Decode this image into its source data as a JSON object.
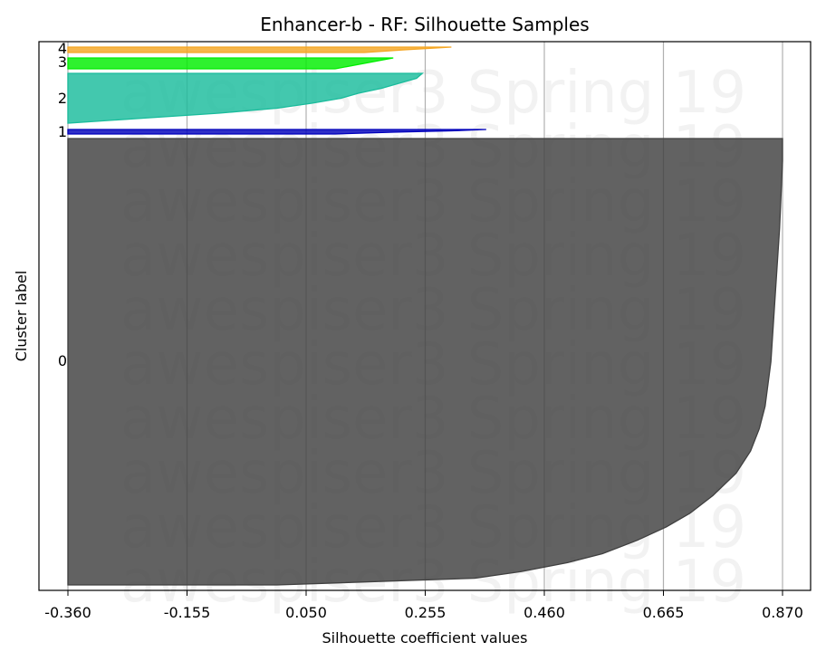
{
  "chart_data": {
    "type": "area",
    "title": "Enhancer-b - RF: Silhouette Samples",
    "xlabel": "Silhouette coefficient values",
    "ylabel": "Cluster label",
    "xlim": [
      -0.36,
      0.87
    ],
    "x_ticks": [
      "-0.360",
      "-0.155",
      "0.050",
      "0.255",
      "0.460",
      "0.665",
      "0.870"
    ],
    "x_tick_values": [
      -0.36,
      -0.155,
      0.05,
      0.255,
      0.46,
      0.665,
      0.87
    ],
    "grid": "vertical",
    "watermark": "awespiser3 Spring 19",
    "clusters": [
      {
        "label": "0",
        "color": "#404040",
        "profile": [
          [
            0.0,
            0.87
          ],
          [
            0.05,
            0.87
          ],
          [
            0.2,
            0.865
          ],
          [
            0.3,
            0.86
          ],
          [
            0.4,
            0.855
          ],
          [
            0.5,
            0.85
          ],
          [
            0.55,
            0.845
          ],
          [
            0.6,
            0.84
          ],
          [
            0.65,
            0.83
          ],
          [
            0.7,
            0.815
          ],
          [
            0.75,
            0.79
          ],
          [
            0.8,
            0.75
          ],
          [
            0.84,
            0.71
          ],
          [
            0.87,
            0.67
          ],
          [
            0.9,
            0.62
          ],
          [
            0.93,
            0.56
          ],
          [
            0.95,
            0.5
          ],
          [
            0.97,
            0.42
          ],
          [
            0.985,
            0.34
          ],
          [
            1.0,
            0.0
          ]
        ]
      },
      {
        "label": "1",
        "color": "#0000bb",
        "profile": [
          [
            0.0,
            0.36
          ],
          [
            0.3,
            0.3
          ],
          [
            0.6,
            0.2
          ],
          [
            1.0,
            0.1
          ]
        ]
      },
      {
        "label": "2",
        "color": "#1abc9c",
        "profile": [
          [
            0.0,
            0.25
          ],
          [
            0.1,
            0.24
          ],
          [
            0.2,
            0.21
          ],
          [
            0.3,
            0.18
          ],
          [
            0.4,
            0.14
          ],
          [
            0.5,
            0.11
          ],
          [
            0.6,
            0.06
          ],
          [
            0.7,
            0.0
          ],
          [
            0.8,
            -0.1
          ],
          [
            0.9,
            -0.23
          ],
          [
            1.0,
            -0.36
          ]
        ]
      },
      {
        "label": "3",
        "color": "#00ee00",
        "profile": [
          [
            0.0,
            0.2
          ],
          [
            0.5,
            0.15
          ],
          [
            1.0,
            0.1
          ]
        ]
      },
      {
        "label": "4",
        "color": "#f5a623",
        "profile": [
          [
            0.0,
            0.3
          ],
          [
            0.5,
            0.22
          ],
          [
            1.0,
            0.15
          ]
        ]
      }
    ]
  }
}
